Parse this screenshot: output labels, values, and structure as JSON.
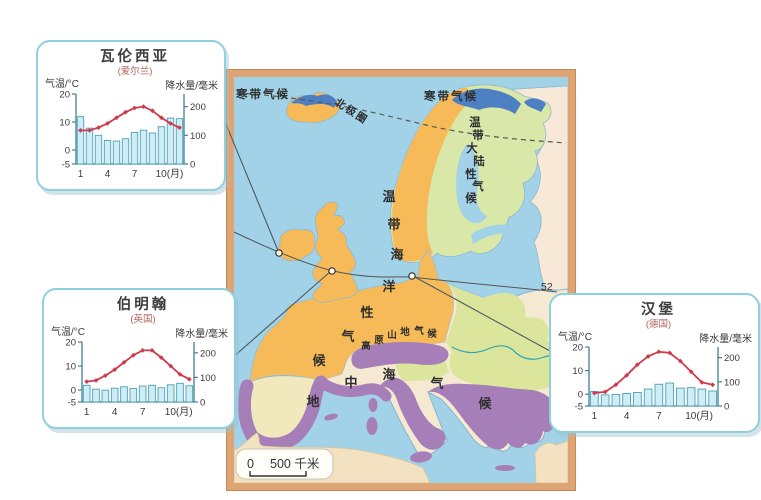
{
  "figure": {
    "description_role": "textbook climate map of Europe with three climographs",
    "map": {
      "labels": {
        "polar_left": "寒带气候",
        "polar_right": "寒带气候",
        "arctic_circle": "北极圈",
        "temperate_continental": "温带大陆性气候",
        "temperate_maritime": "温带海洋性气候",
        "highland": "高原山地气候",
        "mediterranean": "地中海气候",
        "latitude_52": "52"
      },
      "scale_bar": {
        "zero": "0",
        "distance": "500 千米"
      },
      "climate_colors": {
        "sea": "#a2d2e8",
        "polar": "#4d80c3",
        "temperate_maritime": "#f6bb58",
        "temperate_continental": "#d9e7a8",
        "east_region": "#f7e8d7",
        "mediterranean": "#a77fb8",
        "iberia_interior": "#f1e9bd",
        "africa_land": "#f3e2c2",
        "frame": "#dfa473",
        "river": "#2fa3b5"
      }
    }
  },
  "chart_data": [
    {
      "type": "climograph (bar = precipitation, line = temperature)",
      "title": "瓦伦西亚",
      "subtitle": "(爱尔兰)",
      "temp_axis_label": "气温/°C",
      "precip_axis_label": "降水量/毫米",
      "categories": [
        1,
        2,
        3,
        4,
        5,
        6,
        7,
        8,
        9,
        10,
        11,
        12
      ],
      "temperature_c": [
        7,
        7,
        8,
        9.5,
        11.5,
        13.5,
        15,
        15.5,
        14,
        11.5,
        9.5,
        8
      ],
      "precipitation_mm": [
        165,
        125,
        100,
        82,
        80,
        88,
        110,
        118,
        108,
        130,
        160,
        158
      ],
      "temp_axis_ticks": [
        20,
        10,
        0,
        -5
      ],
      "precip_axis_ticks": [
        200,
        100,
        0
      ],
      "x_tick_labels": [
        "1",
        "4",
        "7",
        "10(月)"
      ],
      "temp_axis_range": [
        -5,
        20
      ],
      "precip_axis_range": [
        0,
        244
      ],
      "bar_color": "#cdeef7",
      "line_color": "#cf3b4c"
    },
    {
      "type": "climograph (bar = precipitation, line = temperature)",
      "title": "伯明翰",
      "subtitle": "(英国)",
      "temp_axis_label": "气温/°C",
      "precip_axis_label": "降水量/毫米",
      "categories": [
        1,
        2,
        3,
        4,
        5,
        6,
        7,
        8,
        9,
        10,
        11,
        12
      ],
      "temperature_c": [
        3.5,
        4,
        6,
        8.5,
        11.5,
        14.5,
        16.5,
        16.5,
        13.5,
        10,
        6.5,
        4.5
      ],
      "precipitation_mm": [
        68,
        52,
        48,
        56,
        62,
        55,
        65,
        68,
        58,
        70,
        76,
        66
      ],
      "temp_axis_ticks": [
        20,
        10,
        0,
        -5
      ],
      "precip_axis_ticks": [
        200,
        100,
        0
      ],
      "x_tick_labels": [
        "1",
        "4",
        "7",
        "10(月)"
      ],
      "temp_axis_range": [
        -5,
        20
      ],
      "precip_axis_range": [
        0,
        244
      ],
      "bar_color": "#cdeef7",
      "line_color": "#cf3b4c"
    },
    {
      "type": "climograph (bar = precipitation, line = temperature)",
      "title": "汉堡",
      "subtitle": "(德国)",
      "temp_axis_label": "气温/°C",
      "precip_axis_label": "降水量/毫米",
      "categories": [
        1,
        2,
        3,
        4,
        5,
        6,
        7,
        8,
        9,
        10,
        11,
        12
      ],
      "temperature_c": [
        0.5,
        1,
        4,
        8,
        12.5,
        16,
        18,
        17.5,
        14,
        9.5,
        5,
        4
      ],
      "precipitation_mm": [
        60,
        46,
        48,
        52,
        56,
        70,
        90,
        95,
        74,
        76,
        70,
        62
      ],
      "temp_axis_ticks": [
        20,
        10,
        0,
        -5
      ],
      "precip_axis_ticks": [
        200,
        100,
        0
      ],
      "x_tick_labels": [
        "1",
        "4",
        "7",
        "10(月)"
      ],
      "temp_axis_range": [
        -5,
        20
      ],
      "precip_axis_range": [
        0,
        244
      ],
      "bar_color": "#cdeef7",
      "line_color": "#cf3b4c"
    }
  ]
}
